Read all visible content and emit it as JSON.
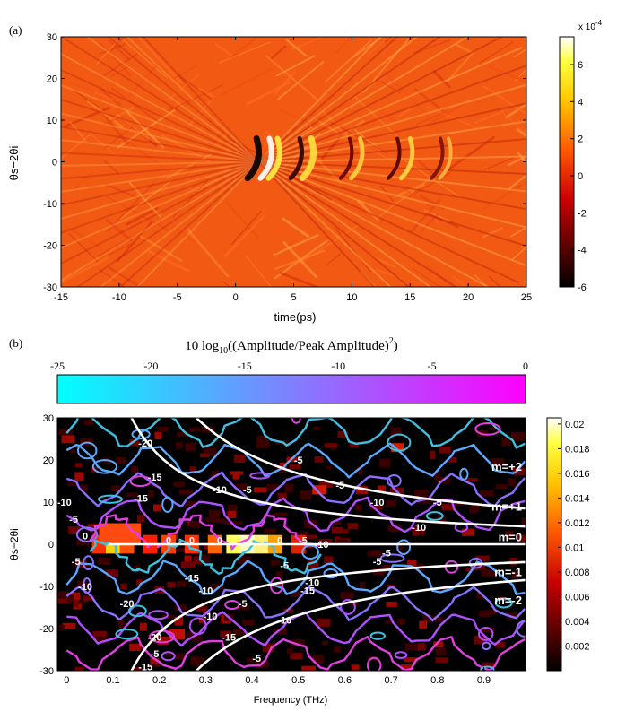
{
  "chart_data": [
    {
      "type": "heatmap",
      "panel_label": "(a)",
      "xlabel": "time(ps)",
      "ylabel": "θs−2θi",
      "xlim": [
        -15,
        25
      ],
      "ylim": [
        -30,
        30
      ],
      "x_ticks": [
        "-15",
        "-10",
        "-5",
        "0",
        "5",
        "10",
        "15",
        "20",
        "25"
      ],
      "y_ticks": [
        "-30",
        "-20",
        "-10",
        "0",
        "10",
        "20",
        "30"
      ],
      "colorbar": {
        "exponent_label": "x 10",
        "exponent": "-4",
        "range": [
          -6,
          7.5
        ],
        "ticks": [
          "-6",
          "-4",
          "-2",
          "0",
          "2",
          "4",
          "6"
        ]
      }
    },
    {
      "type": "heatmap",
      "panel_label": "(b)",
      "xlabel": "Frequency (THz)",
      "ylabel": "θs−2θi",
      "xlim": [
        -0.02,
        0.99
      ],
      "ylim": [
        -30,
        30
      ],
      "x_ticks": [
        "0",
        "0.1",
        "0.2",
        "0.3",
        "0.4",
        "0.5",
        "0.6",
        "0.7",
        "0.8",
        "0.9"
      ],
      "y_ticks": [
        "-30",
        "-20",
        "-10",
        "0",
        "10",
        "20",
        "30"
      ],
      "colorbar": {
        "range": [
          0,
          0.0205
        ],
        "ticks": [
          "0.002",
          "0.004",
          "0.006",
          "0.008",
          "0.01",
          "0.012",
          "0.014",
          "0.016",
          "0.018",
          "0.02"
        ]
      },
      "contour_colorbar": {
        "title": "10 log",
        "title_sub": "10",
        "title_rest": "((Amplitude/Peak Amplitude)",
        "title_sup": "2",
        "title_end": ")",
        "range": [
          -25,
          0
        ],
        "ticks": [
          "-25",
          "-20",
          "-15",
          "-10",
          "-5",
          "0"
        ]
      },
      "order_curves": [
        "m=+2",
        "m=+1",
        "m=0",
        "m=-1",
        "m=-2"
      ],
      "contour_labels": [
        "-10",
        "-5",
        "-15",
        "-20",
        "-15",
        "-10",
        "-5",
        "-10",
        "-5",
        "-5",
        "-15",
        "-20",
        "-10",
        "-5",
        "-10",
        "-5",
        "0",
        "0",
        "0",
        "0",
        "0",
        "-5",
        "-5",
        "-10",
        "-5",
        "-10",
        "-15",
        "-10",
        "-20",
        "-15",
        "-5",
        "-10",
        "-15",
        "-10",
        "-5",
        "-5",
        "-5"
      ]
    }
  ]
}
